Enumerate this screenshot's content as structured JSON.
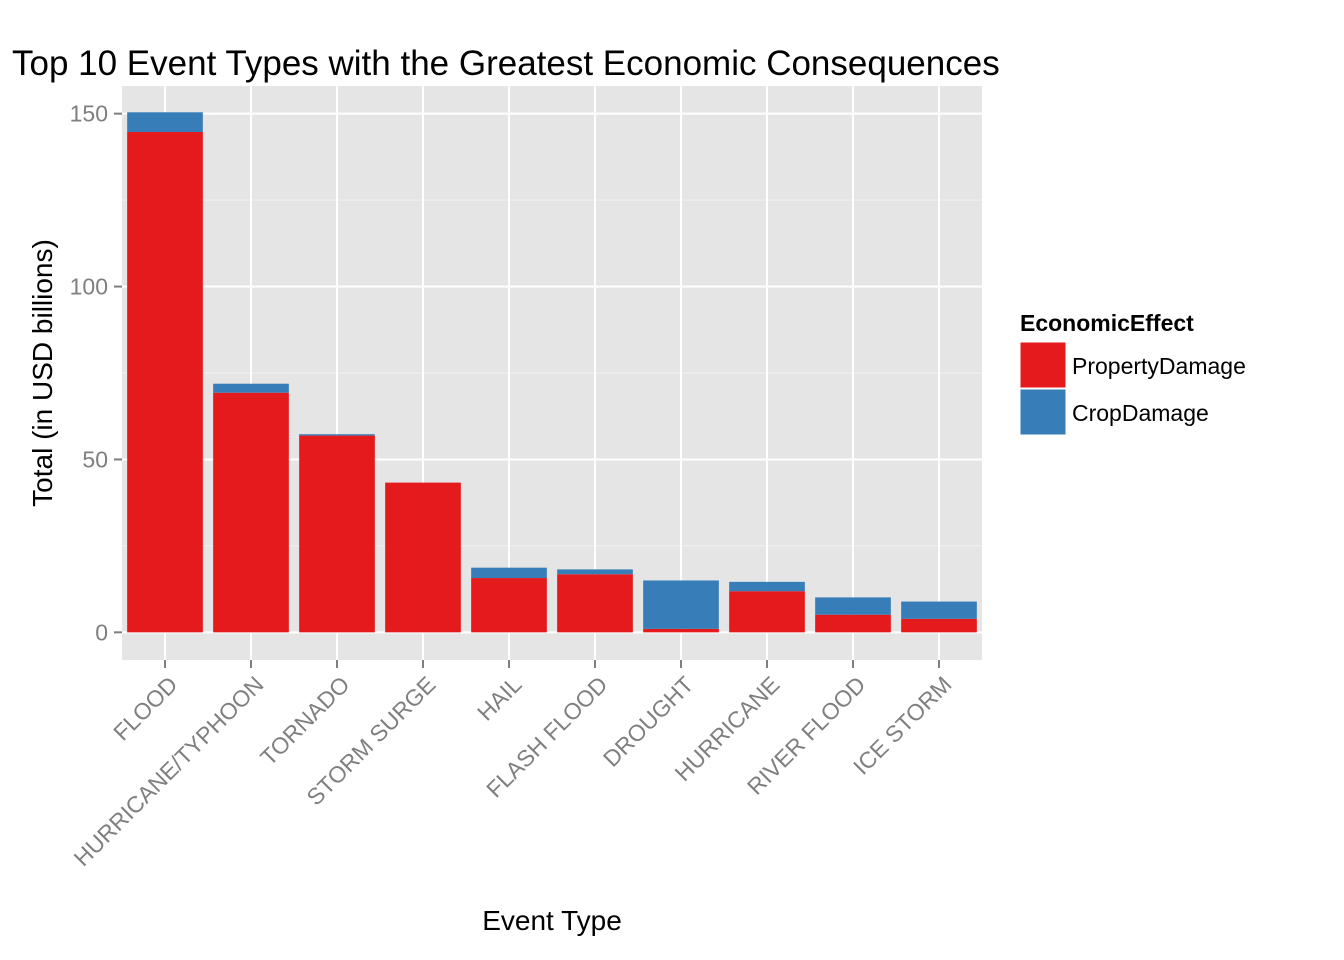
{
  "chart_data": {
    "type": "bar",
    "stacked": true,
    "title": "Top 10 Event Types with the Greatest Economic Consequences",
    "xlabel": "Event Type",
    "ylabel": "Total (in USD billions)",
    "categories": [
      "FLOOD",
      "HURRICANE/TYPHOON",
      "TORNADO",
      "STORM SURGE",
      "HAIL",
      "FLASH FLOOD",
      "DROUGHT",
      "HURRICANE",
      "RIVER FLOOD",
      "ICE STORM"
    ],
    "series": [
      {
        "name": "PropertyDamage",
        "color": "#e41a1c",
        "values": [
          144.7,
          69.3,
          56.9,
          43.3,
          15.7,
          16.8,
          1.0,
          11.9,
          5.1,
          3.9
        ]
      },
      {
        "name": "CropDamage",
        "color": "#377eb8",
        "values": [
          5.7,
          2.6,
          0.4,
          0.0,
          3.0,
          1.4,
          14.0,
          2.7,
          5.0,
          5.0
        ]
      }
    ],
    "ylim": [
      -8,
      158
    ],
    "yticks": [
      0,
      50,
      100,
      150
    ],
    "ytick_labels": [
      "0",
      "50",
      "100",
      "150"
    ],
    "grid": true,
    "legend": {
      "title": "EconomicEffect",
      "position": "right"
    }
  }
}
